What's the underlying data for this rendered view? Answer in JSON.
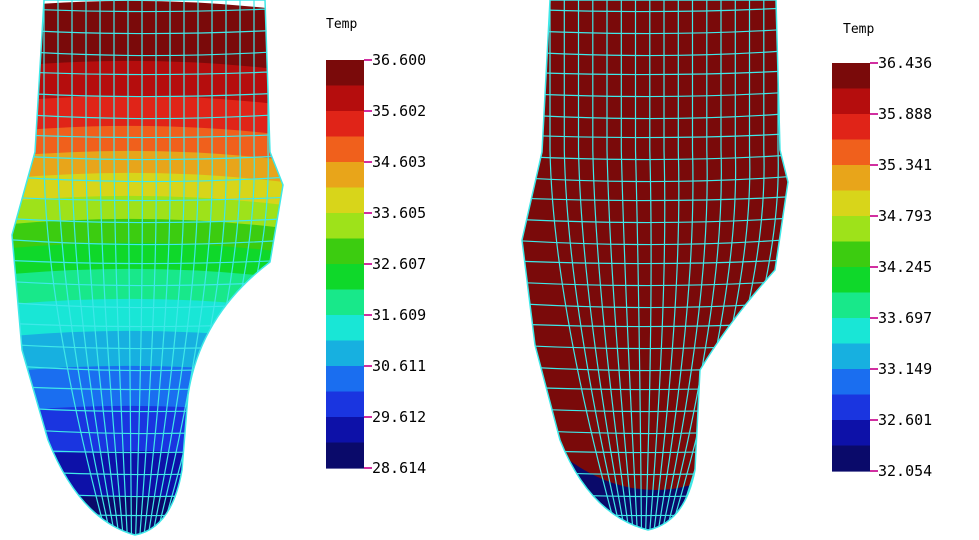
{
  "figures": [
    {
      "legend": {
        "title": "Temp",
        "ticks": [
          "36.600",
          "35.602",
          "34.603",
          "33.605",
          "32.607",
          "31.609",
          "30.611",
          "29.612",
          "28.614"
        ]
      },
      "gradient": "bottom-up"
    },
    {
      "legend": {
        "title": "Temp",
        "ticks": [
          "36.436",
          "35.888",
          "35.341",
          "34.793",
          "34.245",
          "33.697",
          "33.149",
          "32.601",
          "32.054"
        ]
      },
      "gradient": "center-out"
    }
  ],
  "colors": {
    "mesh": "#3fe8e8",
    "tick_mark": "#d12fa0",
    "colormap": [
      "#7a0a0a",
      "#b50d0d",
      "#e02418",
      "#f0601c",
      "#e8a51a",
      "#d8d51a",
      "#9ee21a",
      "#3ccc10",
      "#0fd82a",
      "#18e88a",
      "#19e6d6",
      "#17b0e0",
      "#1a6ef0",
      "#1a35e0",
      "#0d11a8",
      "#0a0a6a"
    ]
  }
}
